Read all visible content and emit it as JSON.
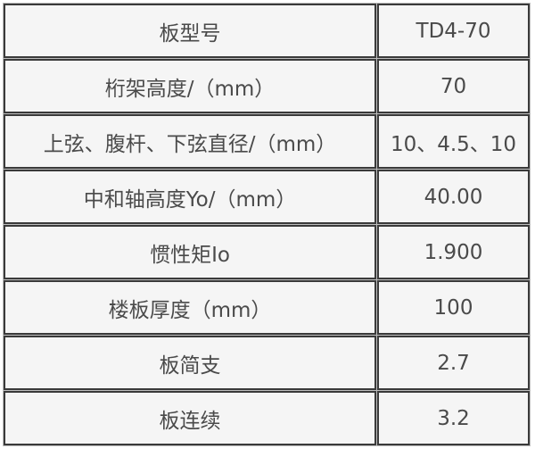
{
  "rows": [
    {
      "label": "板型号",
      "value": "TD4-70"
    },
    {
      "label": "桁架高度/（mm）",
      "value": "70"
    },
    {
      "label": "上弦、腹杆、下弦直径/（mm）",
      "value": "10、4.5、10"
    },
    {
      "label": "中和轴高度Yo/（mm）",
      "value": "40.00"
    },
    {
      "label": "惯性矩Io",
      "value": "1.900"
    },
    {
      "label": "楼板厚度（mm）",
      "value": "100"
    },
    {
      "label": "板简支",
      "value": "2.7"
    },
    {
      "label": "板连续",
      "value": "3.2"
    }
  ]
}
